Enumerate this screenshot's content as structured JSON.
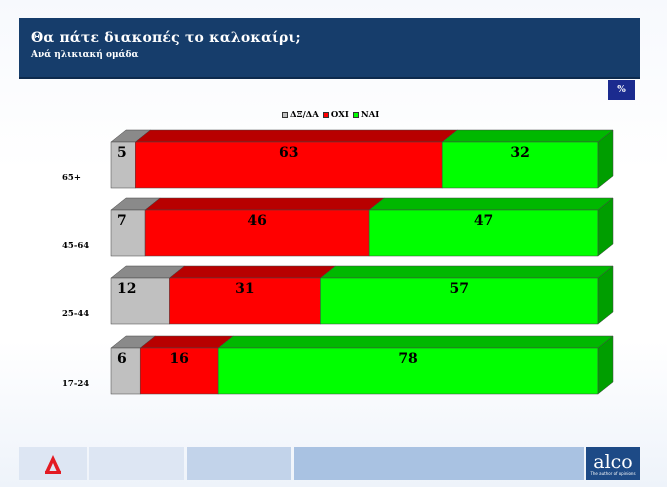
{
  "header": {
    "title": "Θα πάτε διακοπές το καλοκαίρι;",
    "subtitle": "Ανά ηλικιακή ομάδα"
  },
  "badge": "%",
  "footer": {
    "brand": "alco",
    "tagline": "The author of opinions"
  },
  "colors": {
    "header_bg": "#163d6b",
    "dxda": "#c0c0c0",
    "oxi": "#ff0000",
    "nai": "#00ff00"
  },
  "chart_data": {
    "type": "bar",
    "orientation": "horizontal",
    "stacked": true,
    "style": "3d",
    "title": "Θα πάτε διακοπές το καλοκαίρι;",
    "subtitle": "Ανά ηλικιακή ομάδα",
    "unit": "%",
    "legend_position": "top-center",
    "categories": [
      "65+",
      "45-64",
      "25-44",
      "17-24"
    ],
    "series": [
      {
        "name": "ΔΞ/ΔΑ",
        "color": "#c0c0c0",
        "values": [
          5,
          7,
          12,
          6
        ]
      },
      {
        "name": "ΟΧΙ",
        "color": "#ff0000",
        "values": [
          63,
          46,
          31,
          16
        ]
      },
      {
        "name": "ΝΑΙ",
        "color": "#00ff00",
        "values": [
          32,
          47,
          57,
          78
        ]
      }
    ],
    "xlim": [
      0,
      100
    ],
    "grid": false
  }
}
